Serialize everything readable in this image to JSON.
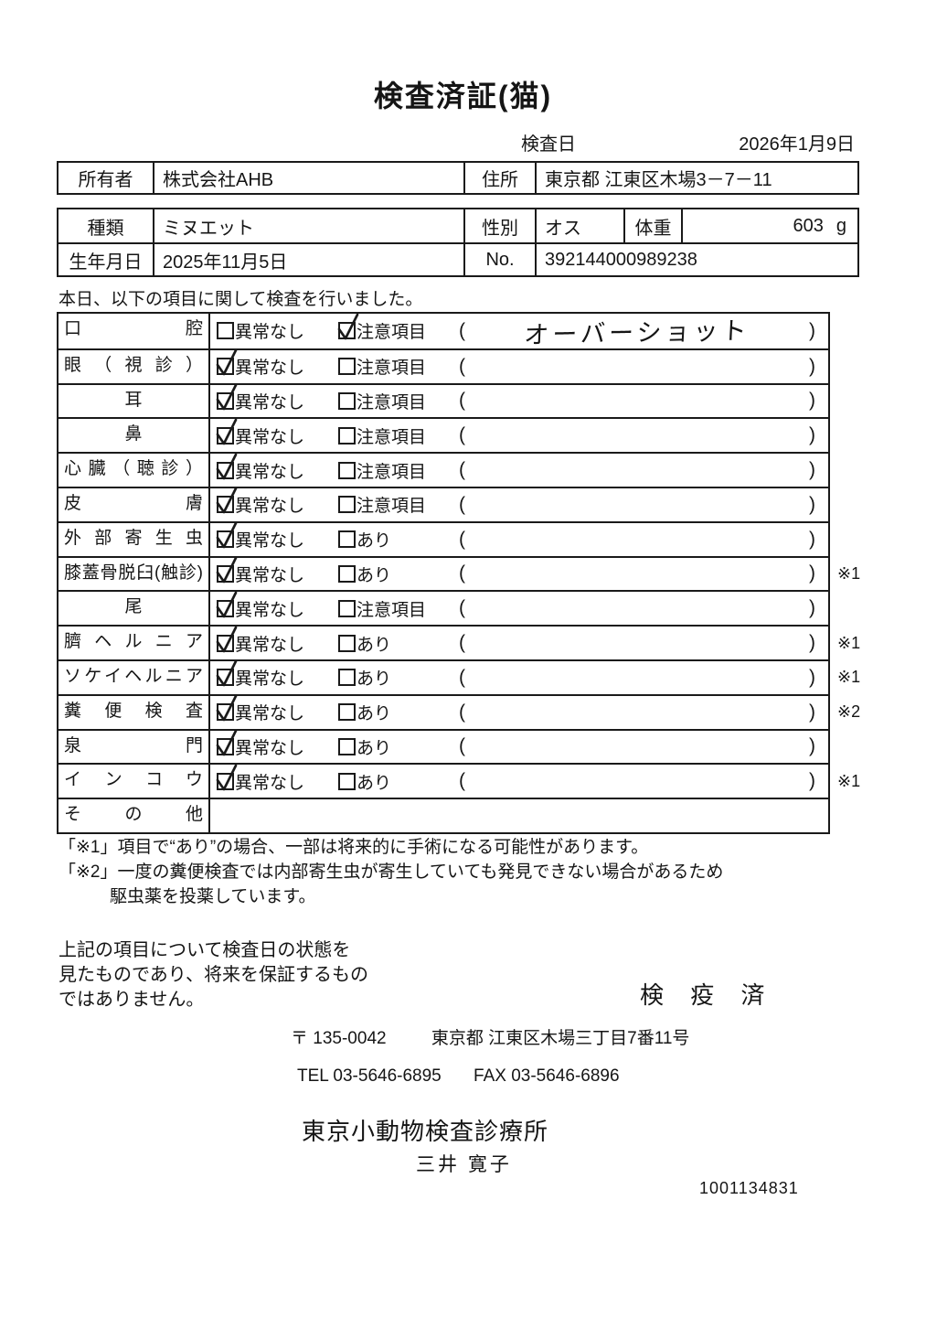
{
  "title": "検査済証(猫)",
  "header": {
    "date_label": "検査日",
    "date_value": "2026年1月9日"
  },
  "owner_table": {
    "owner_label": "所有者",
    "owner_value": "株式会社AHB",
    "address_label": "住所",
    "address_value": "東京都 江東区木場3－7－11"
  },
  "pet_table": {
    "breed_label": "種類",
    "breed_value": "ミヌエット",
    "sex_label": "性別",
    "sex_value": "オス",
    "weight_label": "体重",
    "weight_value": "603",
    "weight_unit": "g",
    "birth_label": "生年月日",
    "birth_value": "2025年11月5日",
    "no_label": "No.",
    "no_value": "392144000989238"
  },
  "intro": "本日、以下の項目に関して検査を行いました。",
  "checklist": {
    "paren_open": "(",
    "paren_close": ")",
    "rows": [
      {
        "label": "口腔",
        "align": "justify",
        "options": [
          {
            "label": "異常なし",
            "checked": false
          },
          {
            "label": "注意項目",
            "checked": true
          }
        ],
        "paren": true,
        "paren_text": "オーバーショット",
        "mark": ""
      },
      {
        "label": "眼（視診）",
        "align": "justify",
        "options": [
          {
            "label": "異常なし",
            "checked": true
          },
          {
            "label": "注意項目",
            "checked": false
          }
        ],
        "paren": true,
        "paren_text": "",
        "mark": ""
      },
      {
        "label": "耳",
        "align": "center",
        "options": [
          {
            "label": "異常なし",
            "checked": true
          },
          {
            "label": "注意項目",
            "checked": false
          }
        ],
        "paren": true,
        "paren_text": "",
        "mark": ""
      },
      {
        "label": "鼻",
        "align": "center",
        "options": [
          {
            "label": "異常なし",
            "checked": true
          },
          {
            "label": "注意項目",
            "checked": false
          }
        ],
        "paren": true,
        "paren_text": "",
        "mark": ""
      },
      {
        "label": "心臓（聴診）",
        "align": "justify",
        "options": [
          {
            "label": "異常なし",
            "checked": true
          },
          {
            "label": "注意項目",
            "checked": false
          }
        ],
        "paren": true,
        "paren_text": "",
        "mark": ""
      },
      {
        "label": "皮膚",
        "align": "justify",
        "options": [
          {
            "label": "異常なし",
            "checked": true
          },
          {
            "label": "注意項目",
            "checked": false
          }
        ],
        "paren": true,
        "paren_text": "",
        "mark": ""
      },
      {
        "label": "外部寄生虫",
        "align": "justify",
        "options": [
          {
            "label": "異常なし",
            "checked": true
          },
          {
            "label": "あり",
            "checked": false
          }
        ],
        "paren": true,
        "paren_text": "",
        "mark": ""
      },
      {
        "label": "膝蓋骨脱臼(触診)",
        "align": "justify",
        "options": [
          {
            "label": "異常なし",
            "checked": true
          },
          {
            "label": "あり",
            "checked": false
          }
        ],
        "paren": true,
        "paren_text": "",
        "mark": "※1"
      },
      {
        "label": "尾",
        "align": "center",
        "options": [
          {
            "label": "異常なし",
            "checked": true
          },
          {
            "label": "注意項目",
            "checked": false
          }
        ],
        "paren": true,
        "paren_text": "",
        "mark": ""
      },
      {
        "label": "臍ヘルニア",
        "align": "justify",
        "options": [
          {
            "label": "異常なし",
            "checked": true
          },
          {
            "label": "あり",
            "checked": false
          }
        ],
        "paren": true,
        "paren_text": "",
        "mark": "※1"
      },
      {
        "label": "ソケイヘルニア",
        "align": "justify",
        "options": [
          {
            "label": "異常なし",
            "checked": true
          },
          {
            "label": "あり",
            "checked": false
          }
        ],
        "paren": true,
        "paren_text": "",
        "mark": "※1"
      },
      {
        "label": "糞便検査",
        "align": "justify",
        "options": [
          {
            "label": "異常なし",
            "checked": true
          },
          {
            "label": "あり",
            "checked": false
          }
        ],
        "paren": true,
        "paren_text": "",
        "mark": "※2"
      },
      {
        "label": "泉門",
        "align": "justify",
        "options": [
          {
            "label": "異常なし",
            "checked": true
          },
          {
            "label": "あり",
            "checked": false
          }
        ],
        "paren": true,
        "paren_text": "",
        "mark": ""
      },
      {
        "label": "インコウ",
        "align": "justify",
        "options": [
          {
            "label": "異常なし",
            "checked": true
          },
          {
            "label": "あり",
            "checked": false
          }
        ],
        "paren": true,
        "paren_text": "",
        "mark": "※1"
      },
      {
        "label": "その他",
        "align": "justify",
        "options": [],
        "paren": false,
        "paren_text": "",
        "mark": ""
      }
    ]
  },
  "notes": {
    "line1": "「※1」項目で“あり”の場合、一部は将来的に手術になる可能性があります。",
    "line2": "「※2」一度の糞便検査では内部寄生虫が寄生していても発見できない場合があるため",
    "line3": "駆虫薬を投薬しています。"
  },
  "disclaimer": {
    "line1": "上記の項目について検査日の状態を",
    "line2": "見たものであり、将来を保証するもの",
    "line3": "ではありません。"
  },
  "stamp": "検 疫 済",
  "footer": {
    "postal": "〒 135-0042",
    "address": "東京都 江東区木場三丁目7番11号",
    "tel": "TEL 03-5646-6895",
    "fax": "FAX 03-5646-6896",
    "clinic": "東京小動物検査診療所",
    "veterinarian": "三井 寛子",
    "serial": "1001134831"
  }
}
